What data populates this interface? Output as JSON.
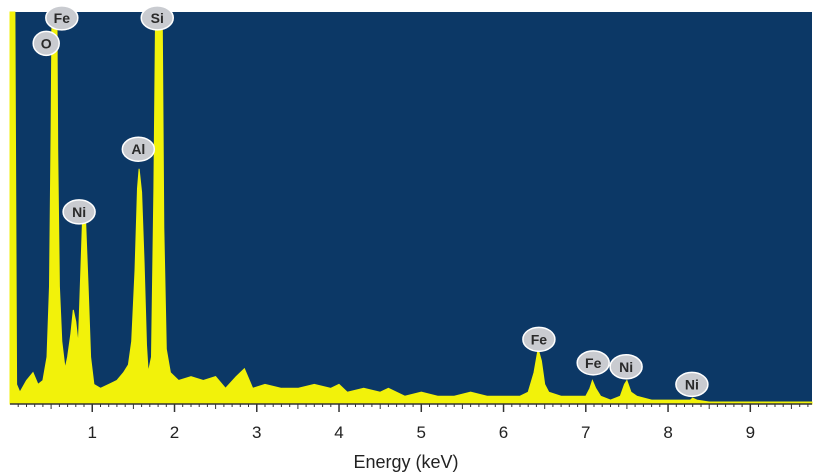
{
  "chart_data": {
    "type": "area",
    "xlabel": "Energy (keV)",
    "ylabel": "",
    "xlim": [
      0,
      9.75
    ],
    "ylim": [
      0,
      100
    ],
    "x_ticks": [
      1,
      2,
      3,
      4,
      5,
      6,
      7,
      8,
      9
    ],
    "x_tick_labels": [
      "1",
      "2",
      "3",
      "4",
      "5",
      "6",
      "7",
      "8",
      "9"
    ],
    "colors": {
      "plot_background": "#0c3866",
      "spectrum": "#f2f20a",
      "label_badge": "#c9cbd0",
      "axis": "#333333"
    },
    "spectrum_points": [
      [
        0.0,
        100
      ],
      [
        0.06,
        100
      ],
      [
        0.08,
        5
      ],
      [
        0.12,
        3
      ],
      [
        0.2,
        6
      ],
      [
        0.28,
        8
      ],
      [
        0.34,
        5
      ],
      [
        0.4,
        6
      ],
      [
        0.45,
        12
      ],
      [
        0.48,
        30
      ],
      [
        0.5,
        70
      ],
      [
        0.51,
        100
      ],
      [
        0.57,
        100
      ],
      [
        0.58,
        65
      ],
      [
        0.6,
        30
      ],
      [
        0.63,
        16
      ],
      [
        0.67,
        9
      ],
      [
        0.7,
        12
      ],
      [
        0.74,
        18
      ],
      [
        0.77,
        24
      ],
      [
        0.8,
        21
      ],
      [
        0.83,
        15
      ],
      [
        0.86,
        33
      ],
      [
        0.88,
        46
      ],
      [
        0.9,
        50
      ],
      [
        0.92,
        46
      ],
      [
        0.95,
        30
      ],
      [
        0.98,
        12
      ],
      [
        1.02,
        5
      ],
      [
        1.1,
        4
      ],
      [
        1.2,
        5
      ],
      [
        1.3,
        6
      ],
      [
        1.38,
        8
      ],
      [
        1.44,
        10
      ],
      [
        1.48,
        16
      ],
      [
        1.52,
        34
      ],
      [
        1.55,
        55
      ],
      [
        1.57,
        60
      ],
      [
        1.6,
        54
      ],
      [
        1.63,
        36
      ],
      [
        1.66,
        15
      ],
      [
        1.68,
        8
      ],
      [
        1.72,
        12
      ],
      [
        1.75,
        55
      ],
      [
        1.77,
        100
      ],
      [
        1.85,
        100
      ],
      [
        1.87,
        45
      ],
      [
        1.9,
        14
      ],
      [
        1.95,
        8
      ],
      [
        2.05,
        6
      ],
      [
        2.2,
        7
      ],
      [
        2.35,
        6
      ],
      [
        2.5,
        7
      ],
      [
        2.62,
        4
      ],
      [
        2.75,
        7
      ],
      [
        2.85,
        9
      ],
      [
        2.95,
        4
      ],
      [
        3.1,
        5
      ],
      [
        3.3,
        4
      ],
      [
        3.5,
        4
      ],
      [
        3.7,
        5
      ],
      [
        3.9,
        4
      ],
      [
        4.0,
        5
      ],
      [
        4.1,
        3
      ],
      [
        4.3,
        4
      ],
      [
        4.5,
        3
      ],
      [
        4.6,
        4
      ],
      [
        4.8,
        2
      ],
      [
        5.0,
        3
      ],
      [
        5.2,
        2
      ],
      [
        5.4,
        2
      ],
      [
        5.6,
        3
      ],
      [
        5.8,
        2
      ],
      [
        6.0,
        2
      ],
      [
        6.2,
        2
      ],
      [
        6.3,
        3
      ],
      [
        6.37,
        8
      ],
      [
        6.42,
        14
      ],
      [
        6.46,
        11
      ],
      [
        6.5,
        5
      ],
      [
        6.55,
        3
      ],
      [
        6.7,
        2
      ],
      [
        6.9,
        2
      ],
      [
        7.0,
        2
      ],
      [
        7.05,
        4
      ],
      [
        7.08,
        6
      ],
      [
        7.12,
        4
      ],
      [
        7.18,
        2
      ],
      [
        7.3,
        1
      ],
      [
        7.42,
        2
      ],
      [
        7.47,
        5
      ],
      [
        7.5,
        6
      ],
      [
        7.55,
        3
      ],
      [
        7.62,
        2
      ],
      [
        7.8,
        1
      ],
      [
        8.0,
        1
      ],
      [
        8.2,
        1
      ],
      [
        8.27,
        1
      ],
      [
        8.3,
        1.5
      ],
      [
        8.35,
        1
      ],
      [
        8.5,
        0.5
      ],
      [
        9.0,
        0.5
      ],
      [
        9.2,
        0.5
      ],
      [
        9.75,
        0.5
      ]
    ],
    "peak_labels": [
      {
        "text": "O",
        "x": 0.44,
        "y": 92
      },
      {
        "text": "Fe",
        "x": 0.63,
        "y": 98.5
      },
      {
        "text": "Si",
        "x": 1.79,
        "y": 98.5
      },
      {
        "text": "Al",
        "x": 1.56,
        "y": 65
      },
      {
        "text": "Ni",
        "x": 0.84,
        "y": 49
      },
      {
        "text": "Fe",
        "x": 6.43,
        "y": 16.5
      },
      {
        "text": "Fe",
        "x": 7.09,
        "y": 10.5
      },
      {
        "text": "Ni",
        "x": 7.49,
        "y": 9.5
      },
      {
        "text": "Ni",
        "x": 8.29,
        "y": 5
      }
    ]
  }
}
